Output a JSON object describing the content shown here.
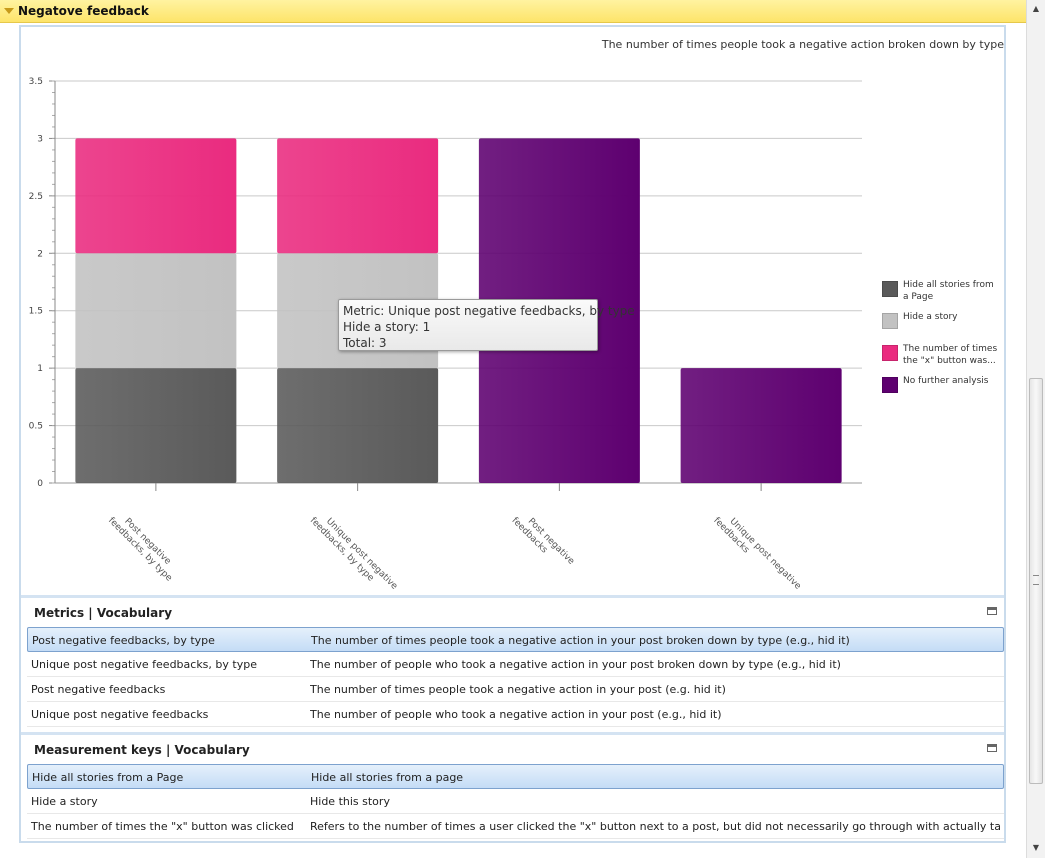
{
  "section": {
    "title": "Negatove feedback"
  },
  "chart_data": {
    "type": "bar",
    "stacked": true,
    "subtitle": "The number of times people took a negative action broken down by type",
    "categories": [
      [
        "Post negative",
        "feedbacks, by type"
      ],
      [
        "Unique post negative",
        "feedbacks, by type"
      ],
      [
        "Post negative",
        "feedbacks"
      ],
      [
        "Unique post negative",
        "feedbacks"
      ]
    ],
    "yticks": [
      "0",
      "0.5",
      "1",
      "1.5",
      "2",
      "2.5",
      "3",
      "3.5"
    ],
    "ylim": [
      0,
      3.5
    ],
    "series": [
      {
        "name": "Hide all stories from a Page",
        "color": "#5a5a5a",
        "values": [
          1,
          1,
          0,
          0
        ]
      },
      {
        "name": "Hide a story",
        "color": "#c2c2c2",
        "values": [
          1,
          1,
          0,
          0
        ]
      },
      {
        "name": "The number of times the \"x\" button was...",
        "color": "#ea2b7f",
        "values": [
          1,
          1,
          0,
          0
        ]
      },
      {
        "name": "No further analysis",
        "color": "#5e0070",
        "values": [
          0,
          0,
          3,
          1
        ]
      }
    ],
    "legend_position": "right",
    "grid": true
  },
  "tooltip": {
    "line1": "Metric: Unique post negative feedbacks, by type",
    "line2": "Hide a story: 1",
    "line3": "Total: 3"
  },
  "metrics": {
    "title": "Metrics | Vocabulary",
    "rows": [
      {
        "name": "Post negative feedbacks, by type",
        "desc": "The number of times people took a negative action in your post broken down by type (e.g., hid it)",
        "selected": true
      },
      {
        "name": "Unique post negative feedbacks, by type",
        "desc": "The number of people who took a negative action in your post broken down by type (e.g., hid it)",
        "selected": false
      },
      {
        "name": "Post negative feedbacks",
        "desc": "The number of times people took a negative action in your post (e.g. hid it)",
        "selected": false
      },
      {
        "name": "Unique post negative feedbacks",
        "desc": "The number of people who took a negative action in your post (e.g., hid it)",
        "selected": false
      }
    ]
  },
  "keys": {
    "title": "Measurement keys | Vocabulary",
    "rows": [
      {
        "name": "Hide all stories from a Page",
        "desc": "Hide all stories from a page",
        "selected": true
      },
      {
        "name": "Hide a story",
        "desc": "Hide this story",
        "selected": false
      },
      {
        "name": "The number of times the \"x\" button was clicked",
        "desc": "Refers to the number of times a user clicked the \"x\" button next to a post, but did not necessarily go through with actually taking an action liste",
        "selected": false
      }
    ]
  }
}
